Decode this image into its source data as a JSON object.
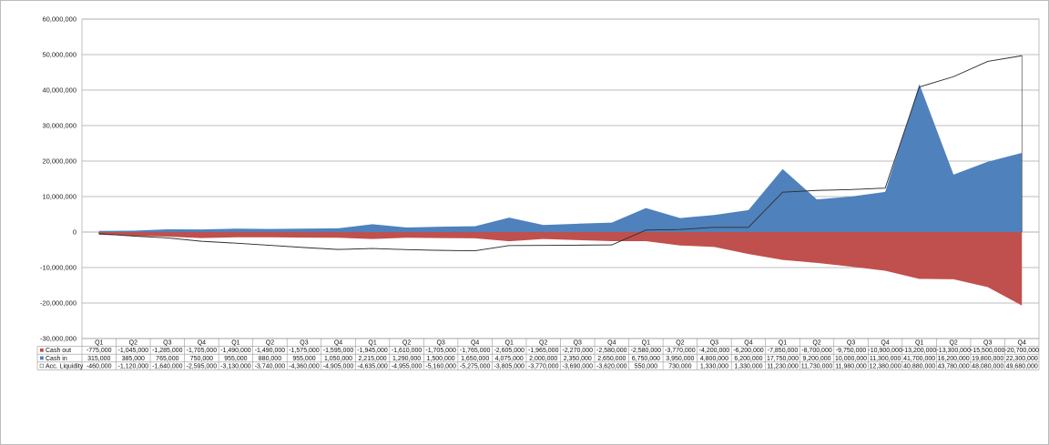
{
  "chart_data": {
    "type": "area",
    "title": "",
    "xlabel": "",
    "ylabel": "",
    "ylim": [
      -30000000,
      60000000
    ],
    "y_ticks": [
      "60,000,000",
      "50,000,000",
      "40,000,000",
      "30,000,000",
      "20,000,000",
      "10,000,000",
      "0",
      "-10,000,000",
      "-20,000,000",
      "-30,000,000"
    ],
    "y_tick_values": [
      60000000,
      50000000,
      40000000,
      30000000,
      20000000,
      10000000,
      0,
      -10000000,
      -20000000,
      -30000000
    ],
    "grid": true,
    "legend": "data-table",
    "categories": [
      "Q1",
      "Q2",
      "Q3",
      "Q4",
      "Q1",
      "Q2",
      "Q3",
      "Q4",
      "Q1",
      "Q2",
      "Q3",
      "Q4",
      "Q1",
      "Q2",
      "Q3",
      "Q4",
      "Q1",
      "Q2",
      "Q3",
      "Q4",
      "Q1",
      "Q2",
      "Q3",
      "Q4",
      "Q1",
      "Q2",
      "Q3",
      "Q4"
    ],
    "series": [
      {
        "name": "Cash out",
        "kind": "area",
        "color": "#c0504d",
        "values": [
          -775000,
          -1045000,
          -1285000,
          -1705000,
          -1490000,
          -1490000,
          -1575000,
          -1595000,
          -1945000,
          -1610000,
          -1705000,
          -1765000,
          -2605000,
          -1965000,
          -2270000,
          -2580000,
          -2580000,
          -3770000,
          -4200000,
          -6200000,
          -7850000,
          -8700000,
          -9750000,
          -10900000,
          -13200000,
          -13300000,
          -15500000,
          -20700000
        ],
        "labels": [
          "-775,000",
          "-1,045,000",
          "-1,285,000",
          "-1,705,000",
          "-1,490,000",
          "-1,490,000",
          "-1,575,000",
          "-1,595,000",
          "-1,945,000",
          "-1,610,000",
          "-1,705,000",
          "-1,765,000",
          "-2,605,000",
          "-1,965,000",
          "-2,270,000",
          "-2,580,000",
          "-2,580,000",
          "-3,770,000",
          "-4,200,000",
          "-6,200,000",
          "-7,850,000",
          "-8,700,000",
          "-9,750,000",
          "-10,900,000",
          "-13,200,000",
          "-13,300,000",
          "-15,500,000",
          "-20,700,000"
        ]
      },
      {
        "name": "Cash in",
        "kind": "area",
        "color": "#4f81bd",
        "values": [
          315000,
          385000,
          765000,
          750000,
          955000,
          880000,
          955000,
          1050000,
          2215000,
          1290000,
          1500000,
          1650000,
          4075000,
          2000000,
          2350000,
          2650000,
          6750000,
          3950000,
          4800000,
          6200000,
          17750000,
          9200000,
          10000000,
          11300000,
          41700000,
          16200000,
          19800000,
          22300000
        ],
        "labels": [
          "315,000",
          "385,000",
          "765,000",
          "750,000",
          "955,000",
          "880,000",
          "955,000",
          "1,050,000",
          "2,215,000",
          "1,290,000",
          "1,500,000",
          "1,650,000",
          "4,075,000",
          "2,000,000",
          "2,350,000",
          "2,650,000",
          "6,750,000",
          "3,950,000",
          "4,800,000",
          "6,200,000",
          "17,750,000",
          "9,200,000",
          "10,000,000",
          "11,300,000",
          "41,700,000",
          "16,200,000",
          "19,800,000",
          "22,300,000"
        ]
      },
      {
        "name": "Acc. Liquidity",
        "kind": "line",
        "color": "#333333",
        "values": [
          -460000,
          -1120000,
          -1640000,
          -2595000,
          -3130000,
          -3740000,
          -4360000,
          -4905000,
          -4635000,
          -4955000,
          -5160000,
          -5275000,
          -3805000,
          -3770000,
          -3690000,
          -3620000,
          550000,
          730000,
          1330000,
          1330000,
          11230000,
          11730000,
          11980000,
          12380000,
          40880000,
          43780000,
          48080000,
          49680000
        ],
        "labels": [
          "-460,000",
          "-1,120,000",
          "-1,640,000",
          "-2,595,000",
          "-3,130,000",
          "-3,740,000",
          "-4,360,000",
          "-4,905,000",
          "-4,635,000",
          "-4,955,000",
          "-5,160,000",
          "-5,275,000",
          "-3,805,000",
          "-3,770,000",
          "-3,690,000",
          "-3,620,000",
          "550,000",
          "730,000",
          "1,330,000",
          "1,330,000",
          "11,230,000",
          "11,730,000",
          "11,980,000",
          "12,380,000",
          "40,880,000",
          "43,780,000",
          "48,080,000",
          "49,680,000"
        ]
      }
    ]
  }
}
